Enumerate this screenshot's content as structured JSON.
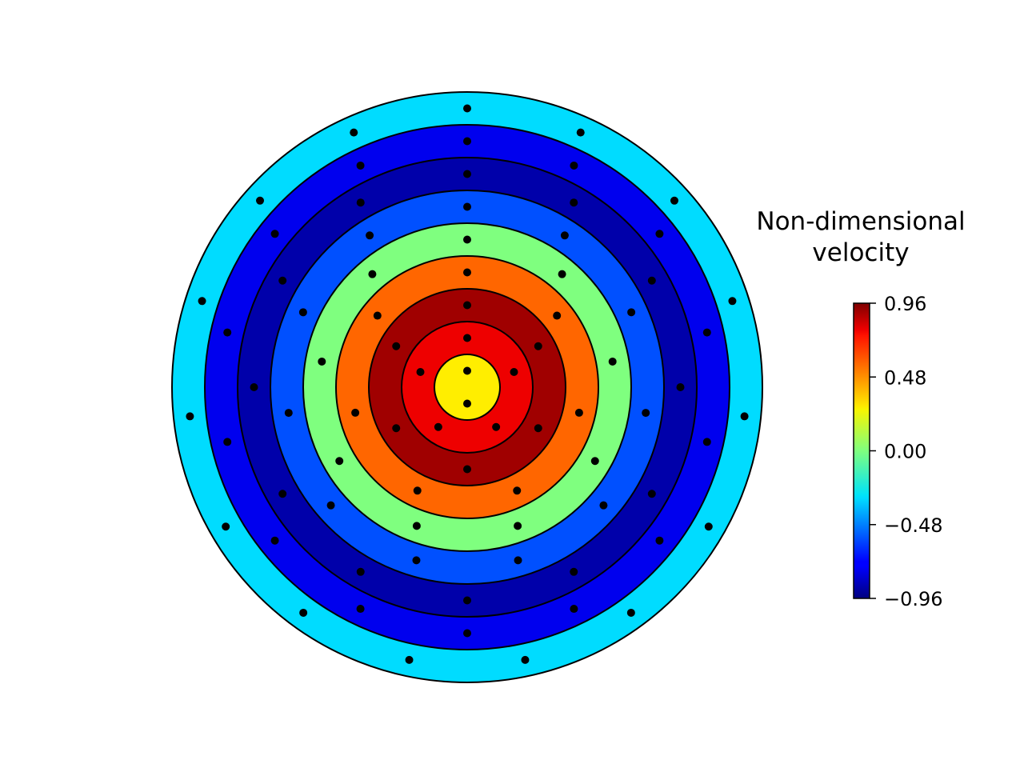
{
  "chart_data": {
    "type": "heatmap",
    "subtype": "concentric-ring contour",
    "title": "",
    "rings": [
      {
        "index": 1,
        "value": 0.24,
        "color": "#ffee00",
        "dots": 2
      },
      {
        "index": 2,
        "value": 0.84,
        "color": "#ee0000",
        "dots": 5
      },
      {
        "index": 3,
        "value": 1.0,
        "color": "#a00000",
        "dots": 6
      },
      {
        "index": 4,
        "value": 0.6,
        "color": "#ff6600",
        "dots": 7
      },
      {
        "index": 5,
        "value": 0.0,
        "color": "#7fff7f",
        "dots": 9
      },
      {
        "index": 6,
        "value": -0.6,
        "color": "#0050ff",
        "dots": 11
      },
      {
        "index": 7,
        "value": -1.0,
        "color": "#0000aa",
        "dots": 12
      },
      {
        "index": 8,
        "value": -0.84,
        "color": "#0000ee",
        "dots": 14
      },
      {
        "index": 9,
        "value": -0.36,
        "color": "#00dcff",
        "dots": 15
      }
    ],
    "colorbar": {
      "title": "Non-dimensional velocity",
      "title_lines": [
        "Non-dimensional",
        "velocity"
      ],
      "range": [
        -0.96,
        0.96
      ],
      "ticks": [
        0.96,
        0.48,
        0.0,
        -0.48,
        -0.96
      ],
      "tick_labels": [
        "0.96",
        "0.48",
        "0.00",
        "−0.48",
        "−0.96"
      ],
      "colormap": "jet"
    }
  }
}
